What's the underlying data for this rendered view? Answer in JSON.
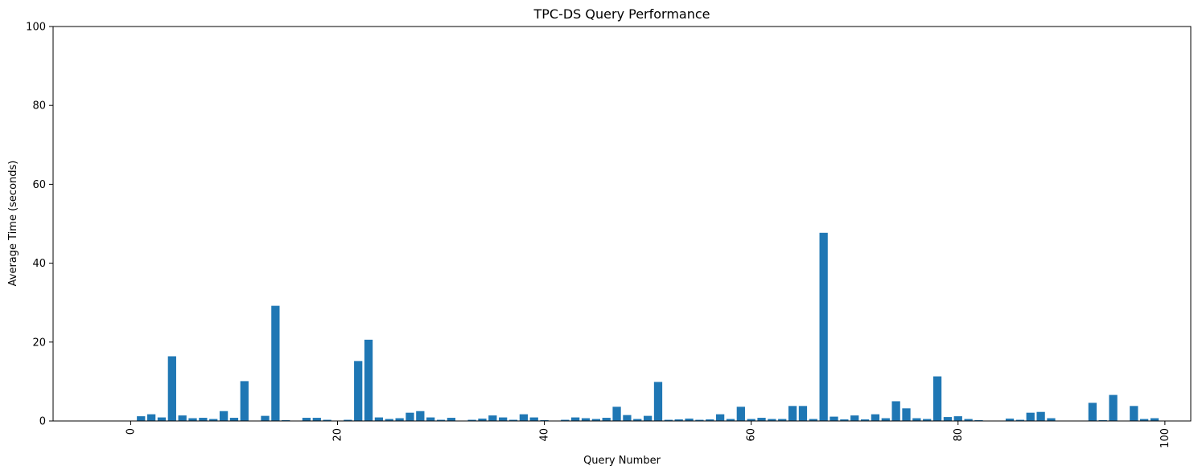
{
  "chart_data": {
    "type": "bar",
    "title": "TPC-DS Query Performance",
    "xlabel": "Query Number",
    "ylabel": "Average Time (seconds)",
    "xlim": [
      -7.5,
      102.5
    ],
    "ylim": [
      0,
      100
    ],
    "xticks": [
      0,
      20,
      40,
      60,
      80,
      100
    ],
    "yticks": [
      0,
      20,
      40,
      60,
      80,
      100
    ],
    "bar_color": "#1f77b4",
    "x": [
      1,
      2,
      3,
      4,
      5,
      6,
      7,
      8,
      9,
      10,
      11,
      12,
      13,
      14,
      15,
      16,
      17,
      18,
      19,
      20,
      21,
      22,
      23,
      24,
      25,
      26,
      27,
      28,
      29,
      30,
      31,
      32,
      33,
      34,
      35,
      36,
      37,
      38,
      39,
      40,
      41,
      42,
      43,
      44,
      45,
      46,
      47,
      48,
      49,
      50,
      51,
      52,
      53,
      54,
      55,
      56,
      57,
      58,
      59,
      60,
      61,
      62,
      63,
      64,
      65,
      66,
      67,
      68,
      69,
      70,
      71,
      72,
      73,
      74,
      75,
      76,
      77,
      78,
      79,
      80,
      81,
      82,
      83,
      84,
      85,
      86,
      87,
      88,
      89,
      90,
      91,
      92,
      93,
      94,
      95,
      96,
      97,
      98,
      99
    ],
    "values": [
      1.2,
      1.7,
      0.9,
      16.4,
      1.4,
      0.7,
      0.8,
      0.5,
      2.5,
      0.8,
      10.1,
      0.1,
      1.3,
      29.2,
      0.2,
      0.1,
      0.8,
      0.8,
      0.3,
      0.1,
      0.3,
      15.2,
      20.6,
      0.9,
      0.5,
      0.7,
      2.1,
      2.5,
      0.9,
      0.3,
      0.8,
      0.1,
      0.3,
      0.6,
      1.4,
      0.9,
      0.3,
      1.7,
      0.9,
      0.2,
      0.1,
      0.3,
      0.9,
      0.7,
      0.5,
      0.8,
      3.6,
      1.5,
      0.5,
      1.3,
      9.9,
      0.3,
      0.4,
      0.6,
      0.3,
      0.4,
      1.7,
      0.5,
      3.6,
      0.5,
      0.8,
      0.5,
      0.5,
      3.8,
      3.8,
      0.5,
      47.7,
      1.1,
      0.4,
      1.4,
      0.4,
      1.7,
      0.7,
      5.0,
      3.2,
      0.7,
      0.5,
      11.3,
      1.0,
      1.2,
      0.5,
      0.2,
      0.1,
      0.1,
      0.6,
      0.3,
      2.1,
      2.3,
      0.7,
      0.1,
      0.1,
      0.1,
      4.6,
      0.2,
      6.6,
      0.1,
      3.8,
      0.5,
      0.7
    ]
  }
}
